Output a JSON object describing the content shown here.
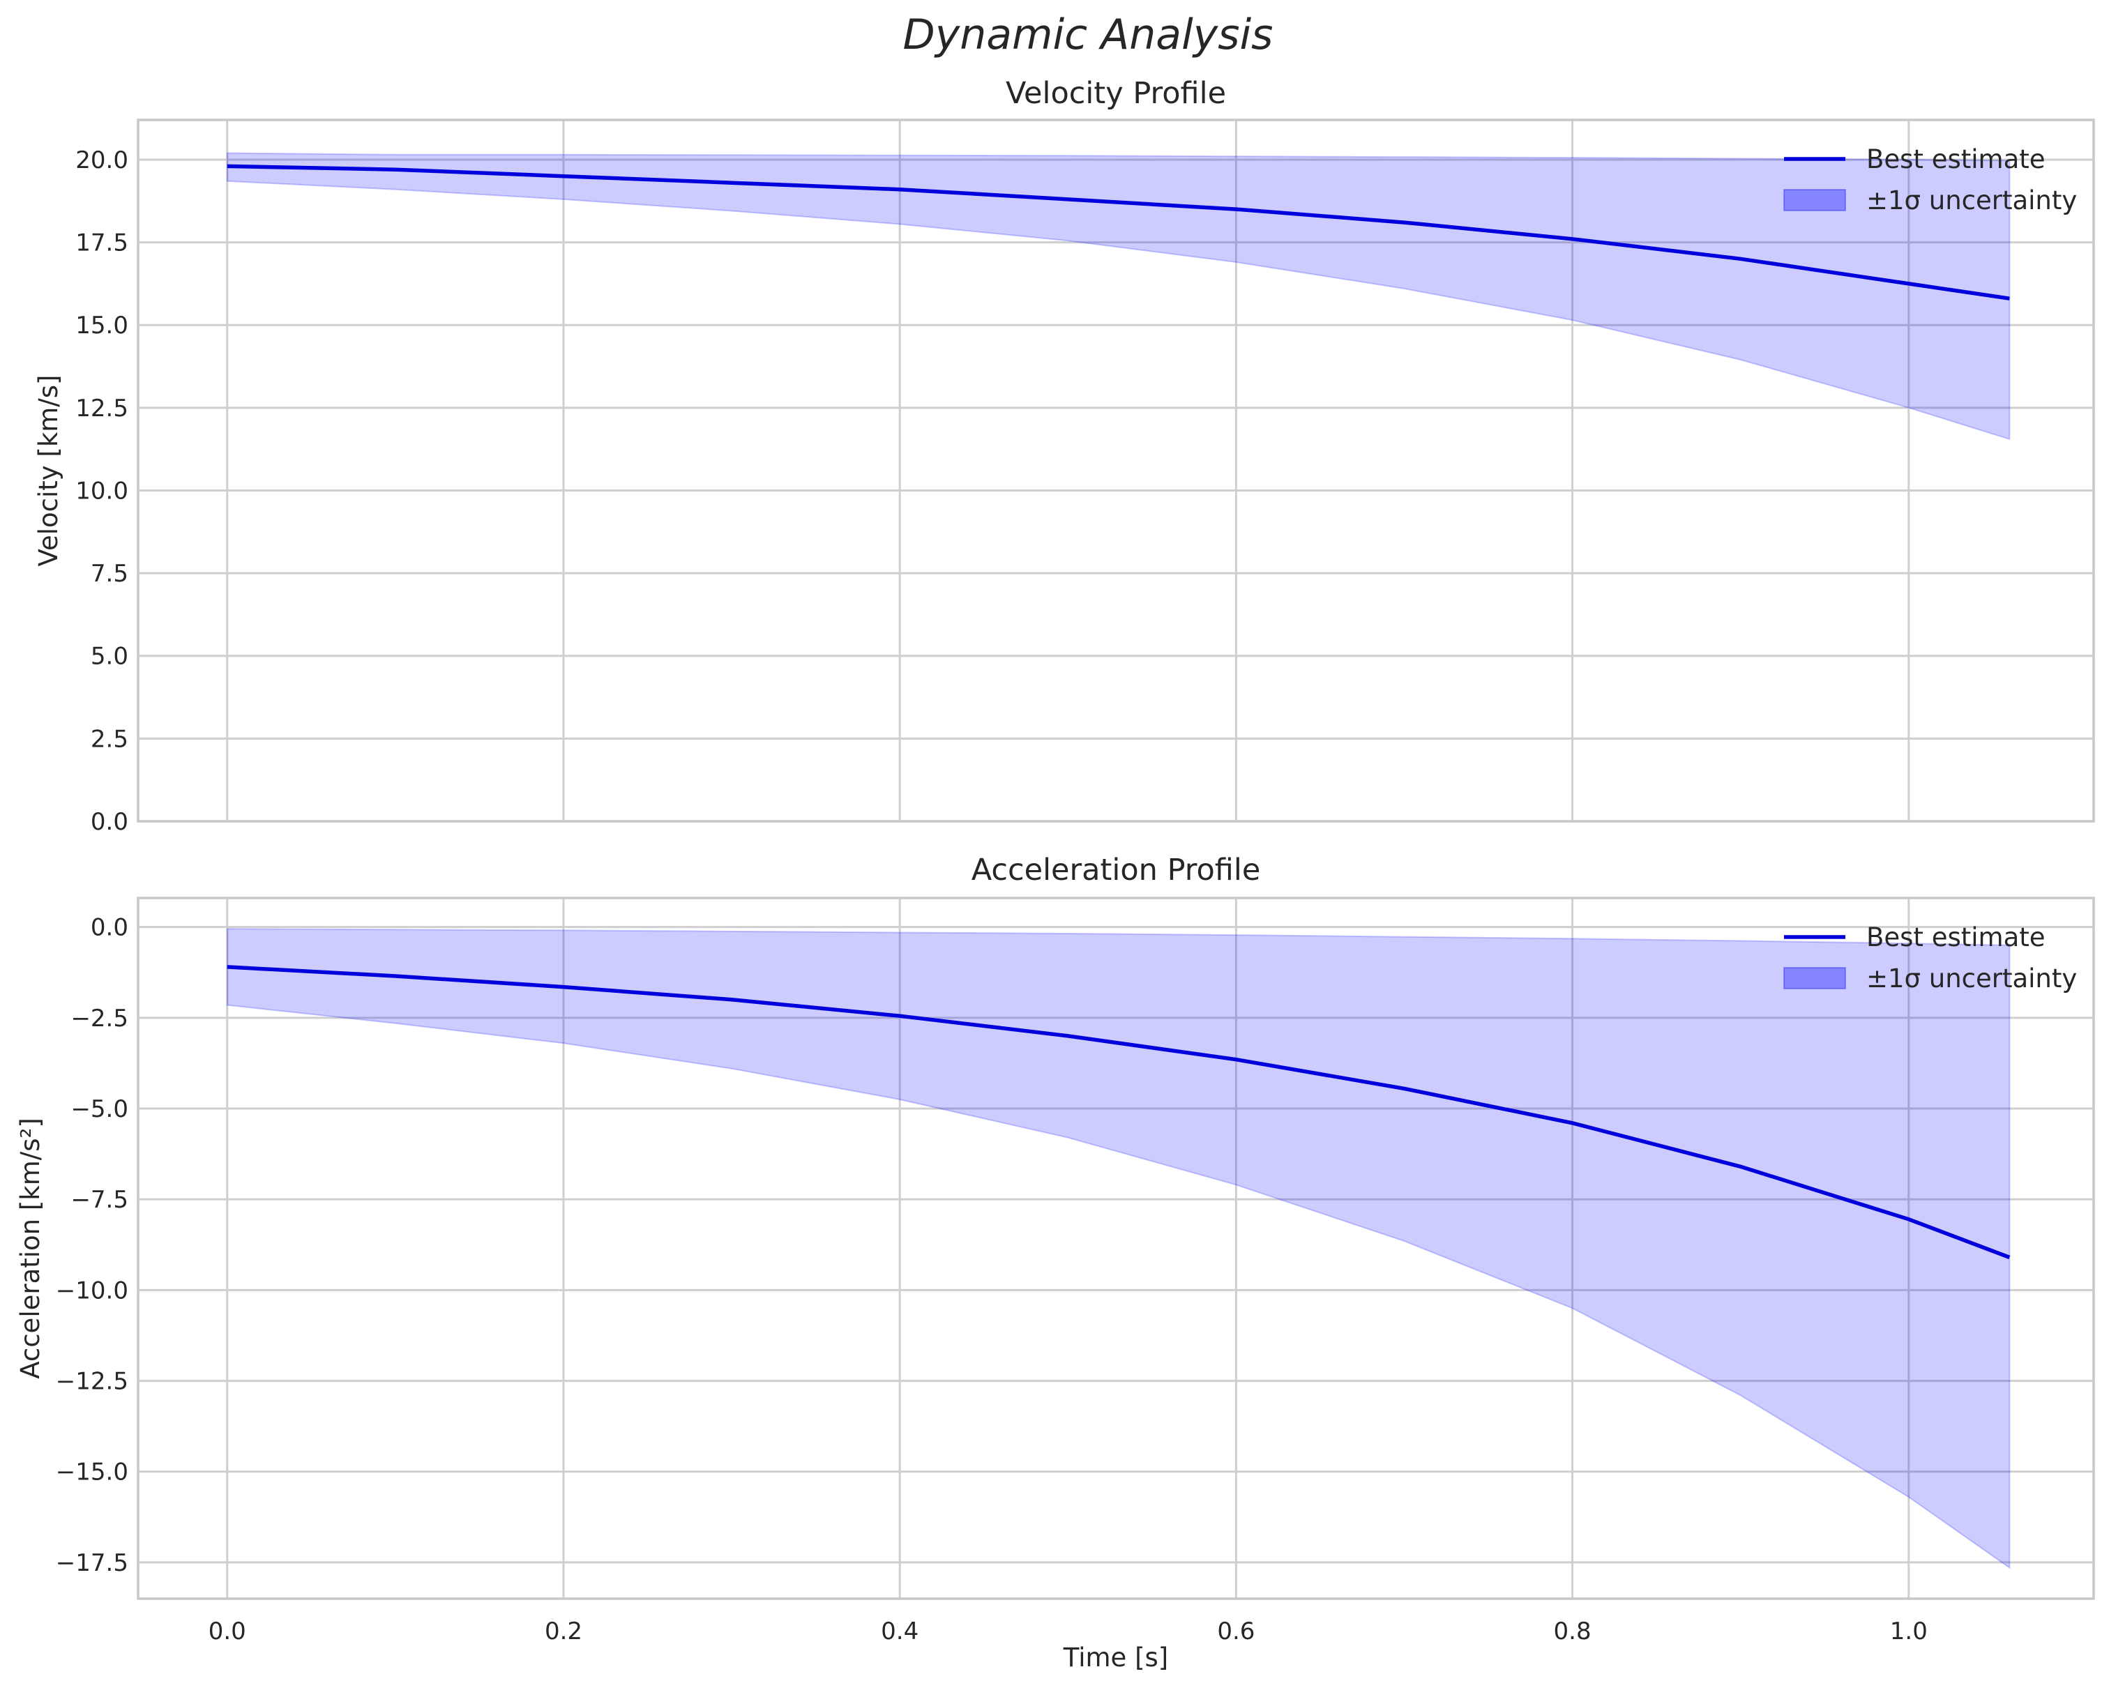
{
  "chart_data": {
    "type": "line",
    "suptitle": "Dynamic Analysis",
    "shared_xlabel": "Time [s]",
    "x_ticks": [
      "0.0",
      "0.2",
      "0.4",
      "0.6",
      "0.8",
      "1.0"
    ],
    "x_tick_values": [
      0.0,
      0.2,
      0.4,
      0.6,
      0.8,
      1.0
    ],
    "xlim": [
      -0.053,
      1.11
    ],
    "colors": {
      "line": "#0000dd",
      "band": "#0000ff",
      "grid": "#cfcfcf",
      "frame": "#c8c8c8"
    },
    "legend_position": "upper right",
    "panels": [
      {
        "id": "velocity",
        "title": "Velocity Profile",
        "ylabel": "Velocity [km/s]",
        "ylim": [
          0,
          21.2
        ],
        "y_ticks": [
          "0.0",
          "2.5",
          "5.0",
          "7.5",
          "10.0",
          "12.5",
          "15.0",
          "17.5",
          "20.0"
        ],
        "y_tick_values": [
          0,
          2.5,
          5,
          7.5,
          10,
          12.5,
          15,
          17.5,
          20
        ],
        "legend": {
          "line_label": "Best estimate",
          "band_label": "±1σ uncertainty"
        },
        "x": [
          0.0,
          0.1,
          0.2,
          0.3,
          0.4,
          0.5,
          0.6,
          0.7,
          0.8,
          0.9,
          1.0,
          1.06
        ],
        "best_estimate": [
          19.8,
          19.7,
          19.5,
          19.3,
          19.1,
          18.8,
          18.5,
          18.1,
          17.6,
          17.0,
          16.25,
          15.8
        ],
        "upper": [
          20.2,
          20.15,
          20.15,
          20.14,
          20.13,
          20.12,
          20.1,
          20.08,
          20.06,
          20.03,
          20.0,
          19.97
        ],
        "lower": [
          19.35,
          19.1,
          18.8,
          18.45,
          18.05,
          17.55,
          16.9,
          16.1,
          15.15,
          13.95,
          12.5,
          11.55
        ]
      },
      {
        "id": "acceleration",
        "title": "Acceleration Profile",
        "ylabel": "Acceleration [km/s²]",
        "ylim": [
          -18.5,
          0.8
        ],
        "y_ticks": [
          "0.0",
          "−2.5",
          "−5.0",
          "−7.5",
          "−10.0",
          "−12.5",
          "−15.0",
          "−17.5"
        ],
        "y_tick_values": [
          0,
          -2.5,
          -5,
          -7.5,
          -10,
          -12.5,
          -15,
          -17.5
        ],
        "legend": {
          "line_label": "Best estimate",
          "band_label": "±1σ uncertainty"
        },
        "x": [
          0.0,
          0.1,
          0.2,
          0.3,
          0.4,
          0.5,
          0.6,
          0.7,
          0.8,
          0.9,
          1.0,
          1.06
        ],
        "best_estimate": [
          -1.1,
          -1.35,
          -1.65,
          -2.0,
          -2.45,
          -3.0,
          -3.65,
          -4.45,
          -5.4,
          -6.6,
          -8.05,
          -9.1
        ],
        "upper": [
          -0.05,
          -0.07,
          -0.09,
          -0.12,
          -0.15,
          -0.18,
          -0.22,
          -0.27,
          -0.32,
          -0.38,
          -0.45,
          -0.5
        ],
        "lower": [
          -2.15,
          -2.65,
          -3.2,
          -3.9,
          -4.75,
          -5.8,
          -7.1,
          -8.65,
          -10.5,
          -12.9,
          -15.7,
          -17.65
        ]
      }
    ]
  }
}
